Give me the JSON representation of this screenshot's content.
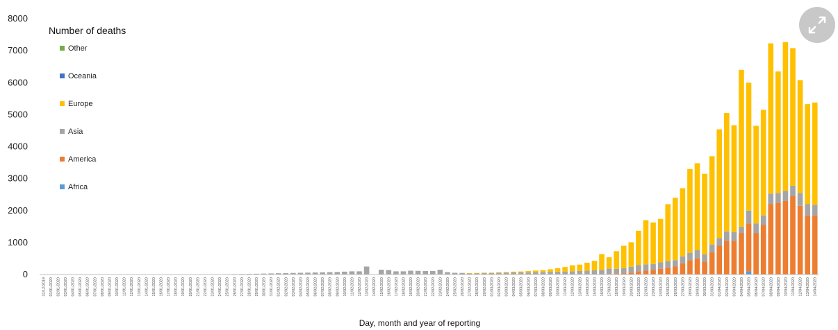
{
  "controls": {
    "expand_icon": "expand-icon"
  },
  "chart_data": {
    "type": "bar",
    "stacked": true,
    "title": "",
    "xlabel": "Day, month and year of reporting",
    "ylabel": "",
    "ylim": [
      0,
      8000
    ],
    "yticks": [
      0,
      1000,
      2000,
      3000,
      4000,
      5000,
      6000,
      7000,
      8000
    ],
    "legend_title": "Number of deaths",
    "legend_position": "top-left",
    "legend": [
      "Other",
      "Oceania",
      "Europe",
      "Asia",
      "America",
      "Africa"
    ],
    "grid": false,
    "categories": [
      "31/12/2019",
      "01/01/2020",
      "02/01/2020",
      "03/01/2020",
      "04/01/2020",
      "05/01/2020",
      "06/01/2020",
      "07/01/2020",
      "08/01/2020",
      "09/01/2020",
      "10/01/2020",
      "11/01/2020",
      "12/01/2020",
      "13/01/2020",
      "14/01/2020",
      "15/01/2020",
      "16/01/2020",
      "17/01/2020",
      "18/01/2020",
      "19/01/2020",
      "20/01/2020",
      "21/01/2020",
      "22/01/2020",
      "23/01/2020",
      "24/01/2020",
      "25/01/2020",
      "26/01/2020",
      "27/01/2020",
      "28/01/2020",
      "29/01/2020",
      "30/01/2020",
      "31/01/2020",
      "01/02/2020",
      "02/02/2020",
      "03/02/2020",
      "04/02/2020",
      "05/02/2020",
      "06/02/2020",
      "07/02/2020",
      "08/02/2020",
      "09/02/2020",
      "10/02/2020",
      "11/02/2020",
      "12/02/2020",
      "13/02/2020",
      "14/02/2020",
      "15/02/2020",
      "16/02/2020",
      "17/02/2020",
      "18/02/2020",
      "19/02/2020",
      "20/02/2020",
      "21/02/2020",
      "22/02/2020",
      "23/02/2020",
      "24/02/2020",
      "25/02/2020",
      "26/02/2020",
      "27/02/2020",
      "28/02/2020",
      "29/02/2020",
      "01/03/2020",
      "02/03/2020",
      "03/03/2020",
      "04/03/2020",
      "05/03/2020",
      "06/03/2020",
      "07/03/2020",
      "08/03/2020",
      "09/03/2020",
      "10/03/2020",
      "11/03/2020",
      "12/03/2020",
      "13/03/2020",
      "14/03/2020",
      "15/03/2020",
      "16/03/2020",
      "17/03/2020",
      "18/03/2020",
      "19/03/2020",
      "20/03/2020",
      "21/03/2020",
      "22/03/2020",
      "23/03/2020",
      "24/03/2020",
      "25/03/2020",
      "26/03/2020",
      "27/03/2020",
      "28/03/2020",
      "29/03/2020",
      "30/03/2020",
      "31/03/2020",
      "01/04/2020",
      "02/04/2020",
      "03/04/2020",
      "04/04/2020",
      "05/04/2020",
      "06/04/2020",
      "07/04/2020",
      "08/04/2020",
      "09/04/2020",
      "10/04/2020",
      "11/04/2020",
      "12/04/2020",
      "13/04/2020",
      "14/04/2020"
    ],
    "series": [
      {
        "name": "Africa",
        "color": "#5b9bd5",
        "values": [
          0,
          0,
          0,
          0,
          0,
          0,
          0,
          0,
          0,
          0,
          0,
          0,
          0,
          0,
          0,
          0,
          0,
          0,
          0,
          0,
          0,
          0,
          0,
          0,
          0,
          0,
          0,
          0,
          0,
          0,
          0,
          0,
          0,
          0,
          0,
          0,
          0,
          0,
          0,
          0,
          0,
          0,
          0,
          0,
          0,
          0,
          0,
          0,
          0,
          0,
          0,
          0,
          0,
          0,
          0,
          0,
          0,
          0,
          0,
          0,
          0,
          0,
          0,
          0,
          0,
          0,
          0,
          0,
          0,
          0,
          0,
          0,
          0,
          0,
          0,
          0,
          0,
          0,
          0,
          0,
          0,
          0,
          0,
          0,
          0,
          0,
          0,
          0,
          0,
          0,
          0,
          0,
          0,
          0,
          0,
          0,
          100,
          0,
          0,
          0,
          0,
          0,
          0,
          0,
          0,
          0
        ]
      },
      {
        "name": "America",
        "color": "#ed7d31",
        "values": [
          0,
          0,
          0,
          0,
          0,
          0,
          0,
          0,
          0,
          0,
          0,
          0,
          0,
          0,
          0,
          0,
          0,
          0,
          0,
          0,
          0,
          0,
          0,
          0,
          0,
          0,
          0,
          0,
          0,
          0,
          0,
          0,
          0,
          0,
          0,
          0,
          0,
          0,
          0,
          0,
          0,
          0,
          0,
          0,
          0,
          0,
          0,
          0,
          0,
          0,
          0,
          0,
          0,
          0,
          0,
          0,
          0,
          0,
          0,
          0,
          0,
          0,
          0,
          0,
          0,
          0,
          0,
          0,
          0,
          0,
          0,
          0,
          0,
          0,
          0,
          0,
          0,
          20,
          30,
          40,
          60,
          100,
          120,
          150,
          180,
          220,
          250,
          350,
          450,
          500,
          400,
          700,
          900,
          1050,
          1050,
          1300,
          1500,
          1300,
          1550,
          2200,
          2250,
          2300,
          2450,
          2150,
          1850,
          1850
        ]
      },
      {
        "name": "Asia",
        "color": "#a5a5a5",
        "values": [
          0,
          0,
          0,
          0,
          0,
          0,
          0,
          0,
          0,
          0,
          0,
          0,
          0,
          0,
          0,
          0,
          0,
          0,
          0,
          0,
          0,
          0,
          0,
          5,
          8,
          12,
          15,
          18,
          20,
          25,
          30,
          35,
          40,
          45,
          50,
          55,
          60,
          65,
          70,
          75,
          80,
          90,
          100,
          100,
          250,
          0,
          150,
          140,
          100,
          100,
          120,
          115,
          110,
          110,
          150,
          75,
          55,
          50,
          40,
          45,
          50,
          50,
          55,
          60,
          65,
          65,
          70,
          75,
          80,
          85,
          90,
          95,
          100,
          110,
          120,
          130,
          140,
          170,
          150,
          160,
          180,
          200,
          200,
          180,
          200,
          200,
          200,
          220,
          230,
          260,
          230,
          240,
          240,
          300,
          280,
          200,
          400,
          300,
          300,
          330,
          300,
          320,
          330,
          400,
          350,
          330
        ]
      },
      {
        "name": "Europe",
        "color": "#ffc000",
        "values": [
          0,
          0,
          0,
          0,
          0,
          0,
          0,
          0,
          0,
          0,
          0,
          0,
          0,
          0,
          0,
          0,
          0,
          0,
          0,
          0,
          0,
          0,
          0,
          0,
          0,
          0,
          0,
          0,
          0,
          0,
          0,
          0,
          0,
          0,
          0,
          0,
          0,
          0,
          0,
          0,
          0,
          0,
          0,
          0,
          0,
          0,
          0,
          0,
          0,
          0,
          0,
          0,
          0,
          0,
          0,
          0,
          0,
          0,
          2,
          5,
          8,
          10,
          15,
          20,
          25,
          30,
          40,
          50,
          60,
          80,
          110,
          140,
          190,
          200,
          250,
          300,
          500,
          350,
          550,
          700,
          770,
          1070,
          1380,
          1300,
          1360,
          1780,
          1950,
          2130,
          2620,
          2720,
          2520,
          2760,
          3400,
          3700,
          3340,
          4900,
          4000,
          3050,
          3300,
          4700,
          3800,
          4650,
          4300,
          3530,
          3130,
          3200
        ]
      },
      {
        "name": "Oceania",
        "color": "#4472c4",
        "values": [
          0,
          0,
          0,
          0,
          0,
          0,
          0,
          0,
          0,
          0,
          0,
          0,
          0,
          0,
          0,
          0,
          0,
          0,
          0,
          0,
          0,
          0,
          0,
          0,
          0,
          0,
          0,
          0,
          0,
          0,
          0,
          0,
          0,
          0,
          0,
          0,
          0,
          0,
          0,
          0,
          0,
          0,
          0,
          0,
          0,
          0,
          0,
          0,
          0,
          0,
          0,
          0,
          0,
          0,
          0,
          0,
          0,
          0,
          0,
          0,
          0,
          0,
          0,
          0,
          0,
          0,
          0,
          0,
          0,
          0,
          0,
          0,
          0,
          0,
          0,
          0,
          0,
          0,
          0,
          0,
          0,
          0,
          0,
          0,
          0,
          0,
          0,
          0,
          0,
          0,
          0,
          0,
          0,
          0,
          0,
          0,
          0,
          0,
          0,
          0,
          0,
          0,
          0,
          0,
          0,
          0
        ]
      },
      {
        "name": "Other",
        "color": "#70ad47",
        "values": [
          0,
          0,
          0,
          0,
          0,
          0,
          0,
          0,
          0,
          0,
          0,
          0,
          0,
          0,
          0,
          0,
          0,
          0,
          0,
          0,
          0,
          0,
          0,
          0,
          0,
          0,
          0,
          0,
          0,
          0,
          0,
          0,
          0,
          0,
          0,
          0,
          0,
          0,
          0,
          0,
          0,
          0,
          0,
          0,
          0,
          0,
          0,
          0,
          0,
          0,
          0,
          0,
          0,
          0,
          0,
          0,
          0,
          0,
          0,
          0,
          0,
          0,
          0,
          0,
          0,
          0,
          0,
          0,
          0,
          0,
          0,
          0,
          0,
          0,
          0,
          0,
          0,
          0,
          0,
          0,
          0,
          0,
          0,
          0,
          0,
          0,
          0,
          0,
          0,
          0,
          0,
          0,
          0,
          0,
          0,
          0,
          0,
          0,
          0,
          0,
          0,
          0,
          0,
          0,
          0,
          0
        ]
      }
    ]
  }
}
